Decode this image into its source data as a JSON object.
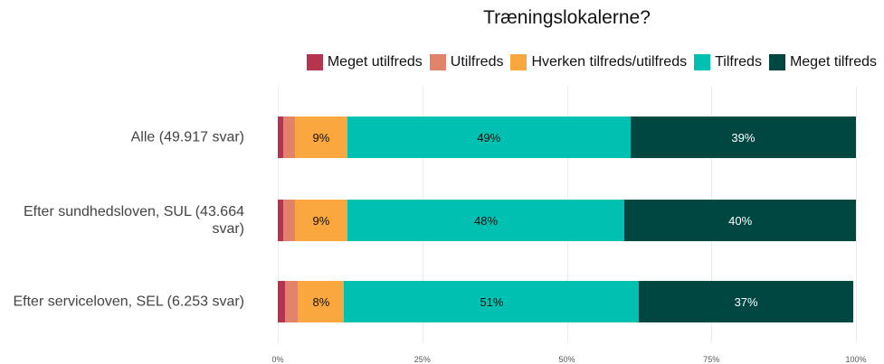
{
  "chart_data": {
    "type": "stacked_bar_horizontal",
    "title": "Træningslokalerne?",
    "categories": [
      "Alle (49.917 svar)",
      "Efter sundhedsloven, SUL (43.664 svar)",
      "Efter serviceloven, SEL (6.253 svar)"
    ],
    "series": [
      {
        "name": "Meget utilfreds",
        "color": "#b5344f",
        "values": [
          1,
          1,
          1.2
        ]
      },
      {
        "name": "Utilfreds",
        "color": "#e0836a",
        "values": [
          2,
          2,
          2.3
        ]
      },
      {
        "name": "Hverken tilfreds/utilfreds",
        "color": "#f9a73e",
        "values": [
          9,
          9,
          8
        ],
        "value_labels": [
          "9%",
          "9%",
          "8%"
        ]
      },
      {
        "name": "Tilfreds",
        "color": "#00c1b1",
        "values": [
          49,
          48,
          51
        ],
        "value_labels": [
          "49%",
          "48%",
          "51%"
        ]
      },
      {
        "name": "Meget tilfreds",
        "color": "#004741",
        "values": [
          39,
          40,
          37
        ],
        "value_labels": [
          "39%",
          "40%",
          "37%"
        ]
      }
    ],
    "xlim": [
      0,
      100
    ],
    "xticks": [
      {
        "value": 0,
        "label": "0%"
      },
      {
        "value": 25,
        "label": "25%"
      },
      {
        "value": 50,
        "label": "50%"
      },
      {
        "value": 75,
        "label": "75%"
      },
      {
        "value": 100,
        "label": "100%"
      }
    ],
    "grid": true,
    "legend": "top"
  }
}
